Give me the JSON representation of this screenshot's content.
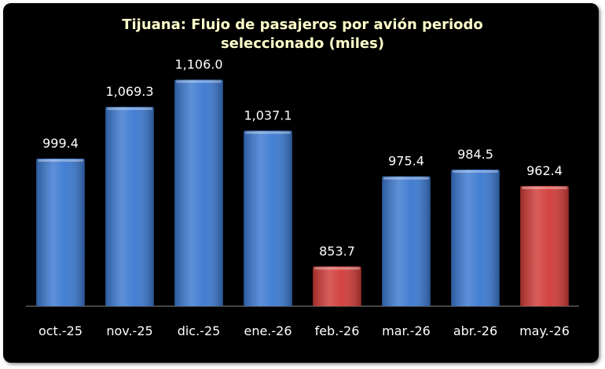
{
  "chart_data": {
    "type": "bar",
    "title": "Tijuana: Flujo de pasajeros por avión periodo seleccionado (miles)",
    "categories": [
      "oct.-25",
      "nov.-25",
      "dic.-25",
      "ene.-26",
      "feb.-26",
      "mar.-26",
      "abr.-26",
      "may.-26"
    ],
    "values": [
      999.4,
      1069.3,
      1106.0,
      1037.1,
      853.7,
      975.4,
      984.5,
      962.4
    ],
    "value_labels": [
      "999.4",
      "1,069.3",
      "1,106.0",
      "1,037.1",
      "853.7",
      "975.4",
      "984.5",
      "962.4"
    ],
    "colors": [
      "#3a78d0",
      "#3a78d0",
      "#3a78d0",
      "#3a78d0",
      "#d03a36",
      "#3a78d0",
      "#3a78d0",
      "#d03a36"
    ],
    "ylim": [
      800,
      1150
    ]
  }
}
